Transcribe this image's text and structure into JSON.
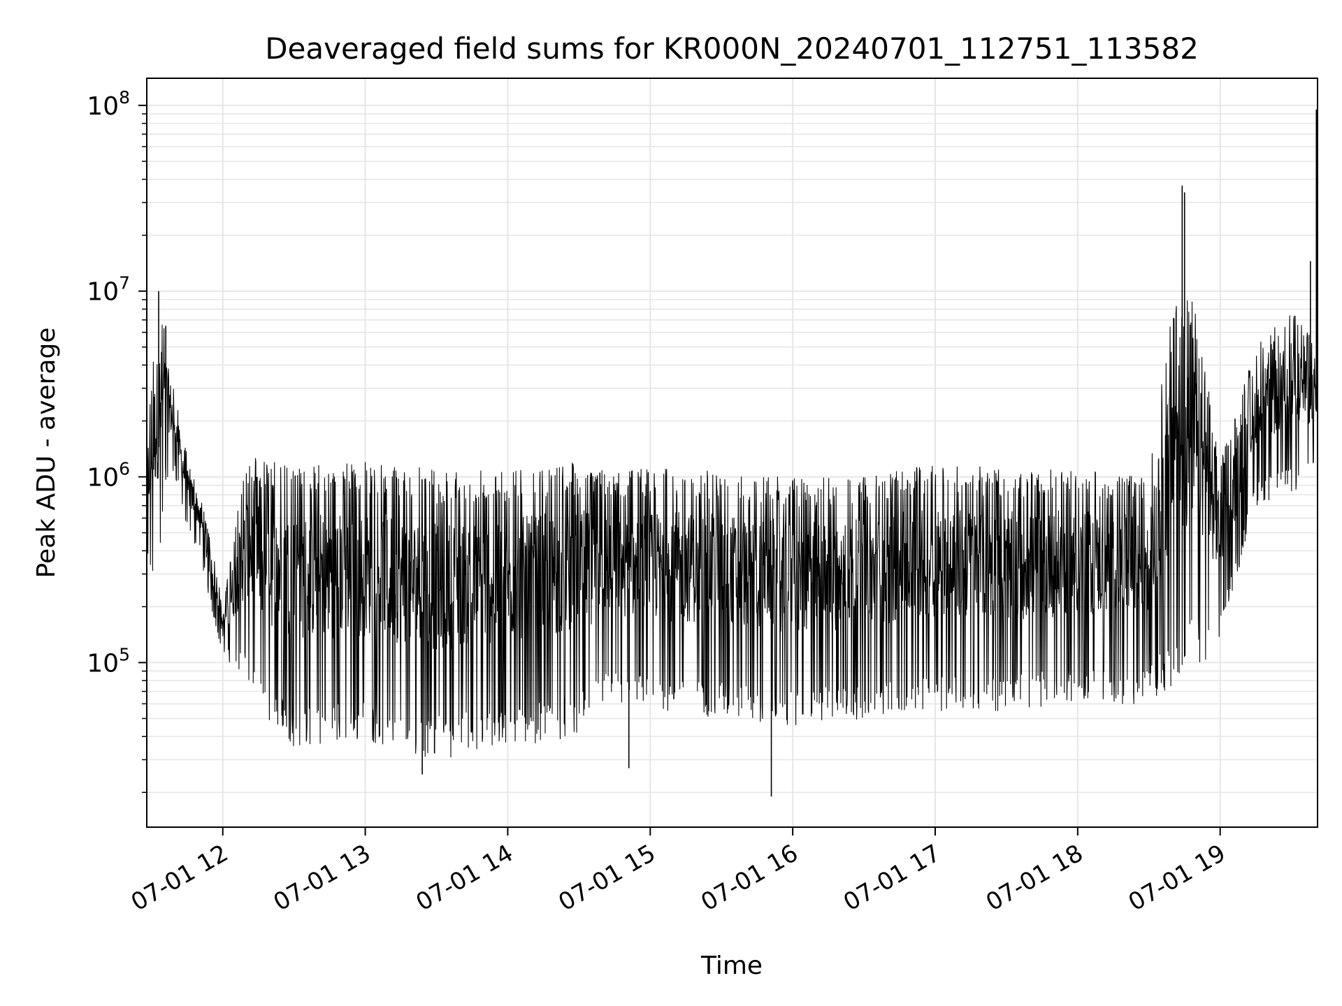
{
  "chart_data": {
    "type": "line",
    "title": "Deaveraged field sums for KR000N_20240701_112751_113582",
    "xlabel": "Time",
    "ylabel": "Peak ADU - average",
    "yscale": "log",
    "ylim": [
      13000,
      140000000
    ],
    "xlim": [
      "2024-07-01T11:28:00",
      "2024-07-01T19:41:00"
    ],
    "x_ticks": [
      {
        "value": "2024-07-01T12:00",
        "label": "07-01 12"
      },
      {
        "value": "2024-07-01T13:00",
        "label": "07-01 13"
      },
      {
        "value": "2024-07-01T14:00",
        "label": "07-01 14"
      },
      {
        "value": "2024-07-01T15:00",
        "label": "07-01 15"
      },
      {
        "value": "2024-07-01T16:00",
        "label": "07-01 16"
      },
      {
        "value": "2024-07-01T17:00",
        "label": "07-01 17"
      },
      {
        "value": "2024-07-01T18:00",
        "label": "07-01 18"
      },
      {
        "value": "2024-07-01T19:00",
        "label": "07-01 19"
      }
    ],
    "y_ticks": [
      {
        "value": 100000,
        "base": "10",
        "exp": "5"
      },
      {
        "value": 1000000,
        "base": "10",
        "exp": "6"
      },
      {
        "value": 10000000,
        "base": "10",
        "exp": "7"
      },
      {
        "value": 100000000,
        "base": "10",
        "exp": "8"
      }
    ],
    "grid": true,
    "line_color": "#000000",
    "grid_color": "#e6e6e6",
    "series": [
      {
        "envelope": [
          {
            "t": "2024-07-01T11:28:00",
            "low": 300000,
            "high": 2000000
          },
          {
            "t": "2024-07-01T11:33:00",
            "low": 250000,
            "high": 10000000
          },
          {
            "t": "2024-07-01T11:36:00",
            "low": 900000,
            "high": 6500000
          },
          {
            "t": "2024-07-01T11:40:00",
            "low": 1000000,
            "high": 2800000
          },
          {
            "t": "2024-07-01T11:45:00",
            "low": 500000,
            "high": 1300000
          },
          {
            "t": "2024-07-01T11:50:00",
            "low": 400000,
            "high": 900000
          },
          {
            "t": "2024-07-01T11:55:00",
            "low": 200000,
            "high": 450000
          },
          {
            "t": "2024-07-01T12:00:00",
            "low": 110000,
            "high": 200000
          },
          {
            "t": "2024-07-01T12:10:00",
            "low": 80000,
            "high": 1300000
          },
          {
            "t": "2024-07-01T12:20:00",
            "low": 45000,
            "high": 1200000
          },
          {
            "t": "2024-07-01T12:30:00",
            "low": 35000,
            "high": 1200000
          },
          {
            "t": "2024-07-01T13:00:00",
            "low": 38000,
            "high": 1200000
          },
          {
            "t": "2024-07-01T13:30:00",
            "low": 30000,
            "high": 1100000
          },
          {
            "t": "2024-07-01T14:00:00",
            "low": 35000,
            "high": 1100000
          },
          {
            "t": "2024-07-01T14:30:00",
            "low": 40000,
            "high": 1200000
          },
          {
            "t": "2024-07-01T14:40:00",
            "low": 60000,
            "high": 1100000
          },
          {
            "t": "2024-07-01T15:00:00",
            "low": 55000,
            "high": 1100000
          },
          {
            "t": "2024-07-01T15:30:00",
            "low": 50000,
            "high": 1100000
          },
          {
            "t": "2024-07-01T16:00:00",
            "low": 45000,
            "high": 1000000
          },
          {
            "t": "2024-07-01T16:30:00",
            "low": 50000,
            "high": 1000000
          },
          {
            "t": "2024-07-01T17:00:00",
            "low": 55000,
            "high": 1200000
          },
          {
            "t": "2024-07-01T17:30:00",
            "low": 55000,
            "high": 1100000
          },
          {
            "t": "2024-07-01T18:00:00",
            "low": 60000,
            "high": 1100000
          },
          {
            "t": "2024-07-01T18:30:00",
            "low": 60000,
            "high": 1000000
          },
          {
            "t": "2024-07-01T18:40:00",
            "low": 70000,
            "high": 9500000
          },
          {
            "t": "2024-07-01T18:50:00",
            "low": 90000,
            "high": 9000000
          },
          {
            "t": "2024-07-01T19:00:00",
            "low": 130000,
            "high": 1200000
          },
          {
            "t": "2024-07-01T19:15:00",
            "low": 700000,
            "high": 5000000
          },
          {
            "t": "2024-07-01T19:30:00",
            "low": 800000,
            "high": 8000000
          },
          {
            "t": "2024-07-01T19:41:00",
            "low": 1000000,
            "high": 5000000
          }
        ],
        "peaks": [
          {
            "t": "2024-07-01T11:33:00",
            "value": 10000000
          },
          {
            "t": "2024-07-01T11:36:00",
            "value": 6500000
          },
          {
            "t": "2024-07-01T13:24:00",
            "value": 25000
          },
          {
            "t": "2024-07-01T14:51:00",
            "value": 27000
          },
          {
            "t": "2024-07-01T15:51:00",
            "value": 19000
          },
          {
            "t": "2024-07-01T18:44:00",
            "value": 37000000
          },
          {
            "t": "2024-07-01T18:45:00",
            "value": 34000000
          },
          {
            "t": "2024-07-01T19:38:00",
            "value": 14500000
          },
          {
            "t": "2024-07-01T19:40:30",
            "value": 95000000
          }
        ]
      }
    ]
  }
}
